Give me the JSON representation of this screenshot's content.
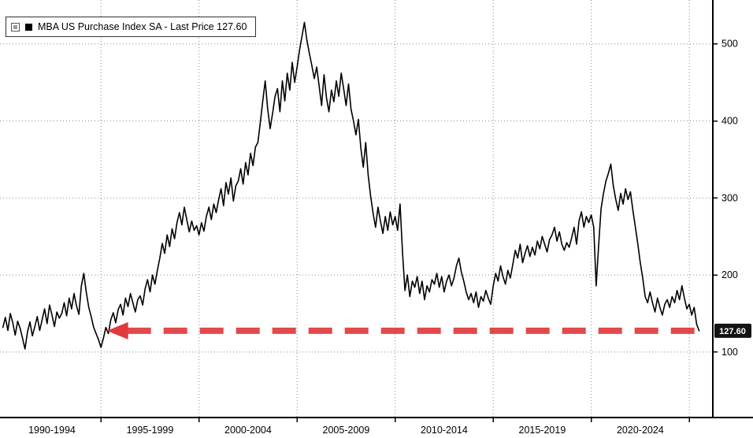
{
  "legend": {
    "label": "MBA US Purchase Index SA - Last Price 127.60",
    "marker_color": "#000000"
  },
  "colors": {
    "series": "#000000",
    "accent_arrow": "#e03a3c",
    "badge_bg": "#141414",
    "badge_text": "#ffffff"
  },
  "chart_data": {
    "type": "line",
    "title": "MBA US Purchase Index SA",
    "last_price": 127.6,
    "xlim": [
      1989.85,
      2026.2
    ],
    "ylim": [
      15,
      557
    ],
    "y_ticks": [
      100,
      200,
      300,
      400,
      500
    ],
    "x_gridlines": [
      1995,
      2000,
      2005,
      2010,
      2015,
      2020,
      2025
    ],
    "x_ticks": [
      {
        "label": "1990-1994",
        "center": 1992.5
      },
      {
        "label": "1995-1999",
        "center": 1997.5
      },
      {
        "label": "2000-2004",
        "center": 2002.5
      },
      {
        "label": "2005-2009",
        "center": 2007.5
      },
      {
        "label": "2010-2014",
        "center": 2012.5
      },
      {
        "label": "2015-2019",
        "center": 2017.5
      },
      {
        "label": "2020-2024",
        "center": 2022.5
      }
    ],
    "legend_position": "top-left",
    "grid": true,
    "series": [
      {
        "name": "MBA US Purchase Index SA",
        "color": "#000000",
        "x_start": 1990.0,
        "x_step": 0.125,
        "values": [
          132,
          145,
          128,
          150,
          138,
          122,
          140,
          131,
          118,
          104,
          126,
          139,
          121,
          133,
          146,
          128,
          142,
          156,
          137,
          161,
          148,
          133,
          152,
          144,
          150,
          164,
          147,
          170,
          156,
          176,
          160,
          149,
          186,
          202,
          178,
          158,
          146,
          132,
          124,
          116,
          106,
          118,
          132,
          124,
          142,
          151,
          138,
          155,
          162,
          148,
          170,
          159,
          176,
          164,
          152,
          168,
          173,
          161,
          182,
          194,
          178,
          200,
          188,
          206,
          222,
          241,
          228,
          252,
          237,
          260,
          247,
          268,
          281,
          265,
          288,
          272,
          256,
          270,
          258,
          264,
          252,
          268,
          257,
          276,
          288,
          272,
          292,
          281,
          298,
          312,
          290,
          320,
          305,
          326,
          296,
          316,
          322,
          338,
          318,
          346,
          330,
          358,
          342,
          366,
          372,
          398,
          426,
          452,
          416,
          390,
          410,
          432,
          442,
          412,
          452,
          426,
          462,
          440,
          476,
          450,
          470,
          492,
          510,
          528,
          505,
          488,
          472,
          455,
          470,
          445,
          420,
          460,
          430,
          412,
          440,
          425,
          452,
          432,
          462,
          442,
          420,
          448,
          415,
          400,
          382,
          402,
          365,
          340,
          372,
          330,
          302,
          280,
          262,
          288,
          270,
          254,
          276,
          258,
          282,
          265,
          276,
          258,
          292,
          230,
          180,
          200,
          172,
          192,
          184,
          198,
          176,
          192,
          168,
          186,
          178,
          194,
          188,
          202,
          184,
          198,
          178,
          192,
          200,
          186,
          196,
          212,
          222,
          204,
          192,
          178,
          168,
          176,
          164,
          178,
          158,
          172,
          166,
          180,
          170,
          162,
          186,
          202,
          192,
          212,
          198,
          188,
          206,
          196,
          214,
          232,
          222,
          240,
          216,
          228,
          238,
          224,
          236,
          226,
          244,
          234,
          250,
          240,
          230,
          246,
          252,
          262,
          244,
          256,
          240,
          232,
          242,
          236,
          248,
          262,
          240,
          270,
          282,
          262,
          276,
          268,
          278,
          262,
          186,
          238,
          286,
          306,
          322,
          332,
          344,
          316,
          298,
          284,
          306,
          292,
          312,
          298,
          308,
          284,
          262,
          240,
          216,
          196,
          172,
          164,
          178,
          164,
          152,
          170,
          158,
          148,
          162,
          168,
          158,
          172,
          164,
          180,
          168,
          186,
          170,
          156,
          162,
          148,
          158,
          136,
          127.6
        ]
      }
    ],
    "annotation": {
      "type": "dashed-arrow",
      "direction": "left",
      "value": 127.6,
      "x_from": 1995.3,
      "x_to": 2025.8,
      "color": "#e03a3c",
      "label": "127.60"
    }
  }
}
